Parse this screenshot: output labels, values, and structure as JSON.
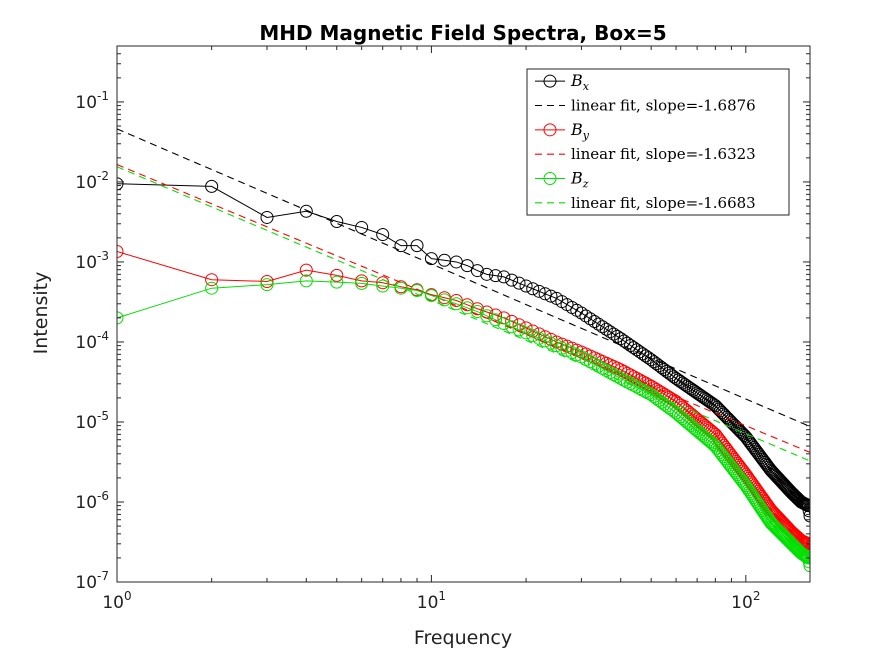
{
  "chart_data": {
    "type": "line",
    "title": "MHD Magnetic Field Spectra, Box=5",
    "xlabel": "Frequency",
    "ylabel": "Intensity",
    "xscale": "log",
    "yscale": "log",
    "xlim": [
      1,
      160
    ],
    "ylim": [
      1e-07,
      0.5
    ],
    "xticks": [
      1,
      10,
      100
    ],
    "xticklabels": [
      {
        "base": "10",
        "exp": "0"
      },
      {
        "base": "10",
        "exp": "1"
      },
      {
        "base": "10",
        "exp": "2"
      }
    ],
    "yticks": [
      1e-07,
      1e-06,
      1e-05,
      0.0001,
      0.001,
      0.01,
      0.1
    ],
    "yticklabels": [
      {
        "base": "10",
        "exp": "-7"
      },
      {
        "base": "10",
        "exp": "-6"
      },
      {
        "base": "10",
        "exp": "-5"
      },
      {
        "base": "10",
        "exp": "-4"
      },
      {
        "base": "10",
        "exp": "-3"
      },
      {
        "base": "10",
        "exp": "-2"
      },
      {
        "base": "10",
        "exp": "-1"
      }
    ],
    "grid": false,
    "legend_position": "top-right",
    "series": [
      {
        "name": "B_x",
        "label_base": "B",
        "label_sub": "x",
        "color": "#000000",
        "kind": "data",
        "anchors": [
          [
            1,
            0.0095
          ],
          [
            2,
            0.0088
          ],
          [
            3,
            0.0036
          ],
          [
            4,
            0.0043
          ],
          [
            5,
            0.0032
          ],
          [
            6,
            0.0027
          ],
          [
            7,
            0.0022
          ],
          [
            8,
            0.0016
          ],
          [
            9,
            0.0016
          ],
          [
            10,
            0.0011
          ],
          [
            11,
            0.00105
          ],
          [
            12,
            0.001
          ],
          [
            13,
            0.0009
          ],
          [
            14,
            0.00078
          ],
          [
            15,
            0.0007
          ],
          [
            17,
            0.00065
          ],
          [
            20,
            0.0005
          ],
          [
            25,
            0.00035
          ],
          [
            30,
            0.00023
          ],
          [
            40,
            0.00011
          ],
          [
            50,
            6e-05
          ],
          [
            60,
            3.5e-05
          ],
          [
            80,
            1.6e-05
          ],
          [
            100,
            6.5e-06
          ],
          [
            120,
            2.5e-06
          ],
          [
            140,
            1.3e-06
          ],
          [
            150,
            1e-06
          ],
          [
            158,
            9e-07
          ],
          [
            160,
            6.7e-07
          ]
        ]
      },
      {
        "name": "linear fit, slope=-1.6876",
        "color": "#000000",
        "kind": "fit",
        "slope": -1.6876,
        "intercept_at_1": 0.046
      },
      {
        "name": "B_y",
        "label_base": "B",
        "label_sub": "y",
        "color": "#ff0000",
        "kind": "data",
        "anchors": [
          [
            1,
            0.00135
          ],
          [
            2,
            0.0006
          ],
          [
            3,
            0.00057
          ],
          [
            4,
            0.00079
          ],
          [
            5,
            0.00068
          ],
          [
            6,
            0.00058
          ],
          [
            7,
            0.00055
          ],
          [
            8,
            0.00049
          ],
          [
            9,
            0.00045
          ],
          [
            10,
            0.00039
          ],
          [
            12,
            0.00033
          ],
          [
            14,
            0.00026
          ],
          [
            17,
            0.0002
          ],
          [
            20,
            0.00015
          ],
          [
            25,
            0.0001
          ],
          [
            30,
            7.5e-05
          ],
          [
            40,
            4.5e-05
          ],
          [
            50,
            2.8e-05
          ],
          [
            60,
            1.8e-05
          ],
          [
            80,
            7e-06
          ],
          [
            100,
            2.2e-06
          ],
          [
            120,
            8e-07
          ],
          [
            140,
            4.2e-07
          ],
          [
            150,
            3.3e-07
          ],
          [
            158,
            3e-07
          ],
          [
            160,
            2.5e-07
          ]
        ]
      },
      {
        "name": "linear fit, slope=-1.6323",
        "color": "#ff0000",
        "kind": "fit",
        "slope": -1.6323,
        "intercept_at_1": 0.0165
      },
      {
        "name": "B_z",
        "label_base": "B",
        "label_sub": "z",
        "color": "#00e000",
        "kind": "data",
        "anchors": [
          [
            1,
            0.0002
          ],
          [
            2,
            0.00047
          ],
          [
            3,
            0.00052
          ],
          [
            4,
            0.00058
          ],
          [
            5,
            0.00056
          ],
          [
            6,
            0.00054
          ],
          [
            7,
            0.0005
          ],
          [
            8,
            0.00047
          ],
          [
            9,
            0.00044
          ],
          [
            10,
            0.00038
          ],
          [
            12,
            0.0003
          ],
          [
            14,
            0.00024
          ],
          [
            17,
            0.00017
          ],
          [
            20,
            0.00013
          ],
          [
            25,
            9e-05
          ],
          [
            30,
            6.5e-05
          ],
          [
            40,
            3.5e-05
          ],
          [
            50,
            2.2e-05
          ],
          [
            60,
            1.3e-05
          ],
          [
            80,
            5e-06
          ],
          [
            100,
            1.6e-06
          ],
          [
            120,
            5.5e-07
          ],
          [
            140,
            3e-07
          ],
          [
            150,
            2.3e-07
          ],
          [
            158,
            2e-07
          ],
          [
            160,
            1.6e-07
          ]
        ]
      },
      {
        "name": "linear fit, slope=-1.6683",
        "color": "#00e000",
        "kind": "fit",
        "slope": -1.6683,
        "intercept_at_1": 0.0155
      }
    ]
  }
}
